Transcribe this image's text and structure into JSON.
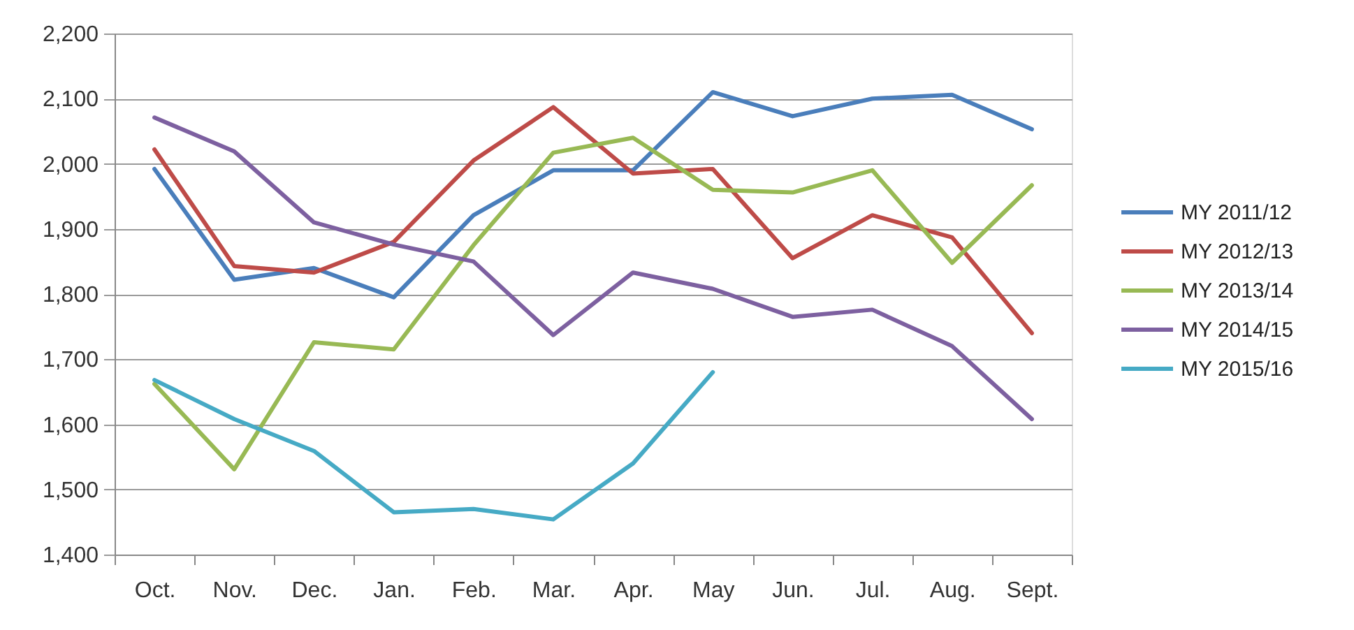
{
  "chart_data": {
    "type": "line",
    "categories": [
      "Oct.",
      "Nov.",
      "Dec.",
      "Jan.",
      "Feb.",
      "Mar.",
      "Apr.",
      "May",
      "Jun.",
      "Jul.",
      "Aug.",
      "Sept."
    ],
    "series": [
      {
        "name": "MY 2011/12",
        "color": "#4a7ebb",
        "values": [
          1992,
          1822,
          1840,
          1795,
          1921,
          1990,
          1990,
          2110,
          2073,
          2100,
          2106,
          2053
        ]
      },
      {
        "name": "MY 2012/13",
        "color": "#be4b48",
        "values": [
          2022,
          1843,
          1833,
          1880,
          2005,
          2087,
          1985,
          1992,
          1855,
          1921,
          1887,
          1740
        ]
      },
      {
        "name": "MY 2013/14",
        "color": "#98b954",
        "values": [
          1662,
          1531,
          1726,
          1715,
          1875,
          2017,
          2040,
          1960,
          1956,
          1990,
          1848,
          1967
        ]
      },
      {
        "name": "MY 2014/15",
        "color": "#7d60a0",
        "values": [
          2071,
          2019,
          1910,
          1876,
          1850,
          1737,
          1833,
          1808,
          1765,
          1776,
          1720,
          1608
        ]
      },
      {
        "name": "MY 2015/16",
        "color": "#46aac5",
        "values": [
          1668,
          1608,
          1559,
          1465,
          1470,
          1454,
          1540,
          1680,
          null,
          null,
          null,
          null
        ]
      }
    ],
    "ylim": [
      1400,
      2200
    ],
    "yticks": [
      {
        "value": 1400,
        "label": "1,400"
      },
      {
        "value": 1500,
        "label": "1,500"
      },
      {
        "value": 1600,
        "label": "1,600"
      },
      {
        "value": 1700,
        "label": "1,700"
      },
      {
        "value": 1800,
        "label": "1,800"
      },
      {
        "value": 1900,
        "label": "1,900"
      },
      {
        "value": 2000,
        "label": "2,000"
      },
      {
        "value": 2100,
        "label": "2,100"
      },
      {
        "value": 2200,
        "label": "2,200"
      }
    ],
    "grid": "y",
    "legend": "right",
    "marker": "none",
    "line_style": "solid"
  }
}
